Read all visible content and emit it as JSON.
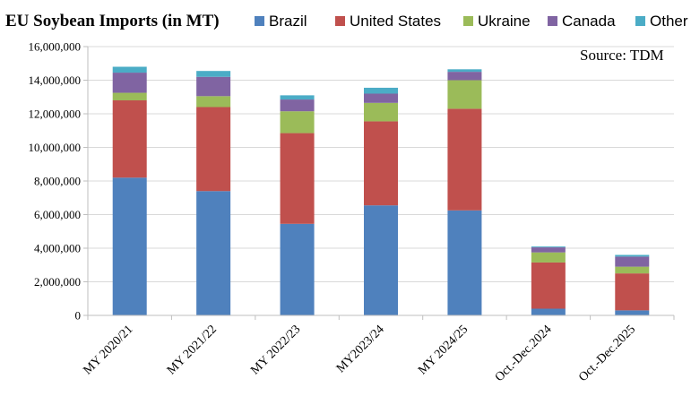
{
  "chart_data": {
    "type": "bar",
    "stacked": true,
    "title": "EU Soybean Imports (in MT)",
    "source": "Source: TDM",
    "categories": [
      "MY 2020/21",
      "MY 2021/22",
      "MY 2022/23",
      "MY2023/24",
      "MY 2024/25",
      "Oct.-Dec.2024",
      "Oct.-Dec.2025"
    ],
    "series": [
      {
        "name": "Brazil",
        "color": "#4f81bd",
        "values": [
          8200000,
          7400000,
          5450000,
          6550000,
          6250000,
          400000,
          300000
        ]
      },
      {
        "name": "United States",
        "color": "#c0504d",
        "values": [
          4600000,
          5000000,
          5400000,
          5000000,
          6050000,
          2750000,
          2200000
        ]
      },
      {
        "name": "Ukraine",
        "color": "#9bbb59",
        "values": [
          450000,
          650000,
          1300000,
          1100000,
          1700000,
          600000,
          400000
        ]
      },
      {
        "name": "Canada",
        "color": "#8064a2",
        "values": [
          1200000,
          1150000,
          700000,
          550000,
          500000,
          300000,
          600000
        ]
      },
      {
        "name": "Other",
        "color": "#4bacc6",
        "values": [
          350000,
          350000,
          250000,
          350000,
          150000,
          50000,
          100000
        ]
      }
    ],
    "ylim": [
      0,
      16000000
    ],
    "yticks": [
      0,
      2000000,
      4000000,
      6000000,
      8000000,
      10000000,
      12000000,
      14000000,
      16000000
    ],
    "ytick_labels": [
      "0",
      "2,000,000",
      "4,000,000",
      "6,000,000",
      "8,000,000",
      "10,000,000",
      "12,000,000",
      "14,000,000",
      "16,000,000"
    ],
    "xlabel": "",
    "ylabel": "",
    "legend_position": "top",
    "grid": true
  }
}
